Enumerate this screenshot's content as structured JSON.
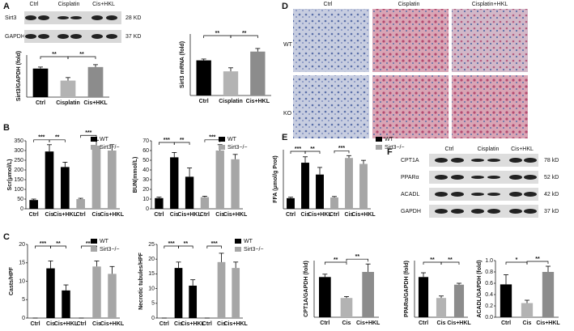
{
  "figure": {
    "panels": [
      "A",
      "B",
      "C",
      "D",
      "E",
      "F"
    ],
    "blot_a": {
      "lanes": [
        "Ctrl",
        "Cisplatin",
        "Cis+HKL"
      ],
      "rows": [
        {
          "protein": "Sirt3",
          "size": "28 KD"
        },
        {
          "protein": "GAPDH",
          "size": "37 KD"
        }
      ]
    },
    "histology": {
      "columns": [
        "Ctrl",
        "Cisplatin",
        "Cisplatin+HKL"
      ],
      "rows": [
        "WT",
        "KO"
      ]
    },
    "blot_f": {
      "lanes": [
        "Ctrl",
        "Cisplatin",
        "Cis+HKL"
      ],
      "rows": [
        {
          "protein": "CPT1A",
          "size": "78 kD"
        },
        {
          "protein": "PPARα",
          "size": "52 kD"
        },
        {
          "protein": "ACADL",
          "size": "42 kD"
        },
        {
          "protein": "GAPDH",
          "size": "37 kD"
        }
      ]
    }
  },
  "chart_data": [
    {
      "type": "bar",
      "ylabel": "Sirt3/GAPDH (fold)",
      "categories": [
        "Ctrl",
        "Cisplatin",
        "Cis+HKL"
      ],
      "values": [
        0.95,
        0.55,
        1.0
      ],
      "errors": [
        0.05,
        0.1,
        0.08
      ],
      "colors": [
        "#000000",
        "#b3b3b3",
        "#8c8c8c"
      ],
      "ylim": [
        0,
        1.4
      ],
      "annotations": [
        "**",
        "**"
      ]
    },
    {
      "type": "bar",
      "ylabel": "Sirt3 mRNA (fold)",
      "categories": [
        "Ctrl",
        "Cisplatin",
        "Cis+HKL"
      ],
      "values": [
        0.8,
        0.55,
        1.0
      ],
      "errors": [
        0.03,
        0.08,
        0.07
      ],
      "colors": [
        "#000000",
        "#b3b3b3",
        "#8c8c8c"
      ],
      "ylim": [
        0,
        1.4
      ],
      "annotations": [
        "**",
        "**"
      ]
    },
    {
      "type": "grouped",
      "ylabel": "Scr(μmol/L)",
      "categories": [
        "Ctrl",
        "Cis",
        "Cis+HKL",
        "Ctrl",
        "Cis",
        "Cis+HKL"
      ],
      "series": [
        {
          "name": "WT",
          "color": "#000000",
          "values": [
            45,
            295,
            215,
            null,
            null,
            null
          ],
          "errors": [
            5,
            35,
            25,
            null,
            null,
            null
          ]
        },
        {
          "name": "Sirt3−/−",
          "color": "#a6a6a6",
          "values": [
            null,
            null,
            null,
            50,
            325,
            300
          ],
          "errors": [
            null,
            null,
            null,
            4,
            28,
            30
          ]
        }
      ],
      "ylim": [
        0,
        350
      ],
      "yticks": [
        0,
        50,
        100,
        150,
        200,
        250,
        300,
        350
      ],
      "annotations": [
        "***",
        "**",
        "***"
      ]
    },
    {
      "type": "grouped",
      "ylabel": "BUN(mmol/L)",
      "categories": [
        "Ctrl",
        "Cis",
        "Cis+HKL",
        "Ctrl",
        "Cis",
        "Cis+HKL"
      ],
      "series": [
        {
          "name": "WT",
          "color": "#000000",
          "values": [
            11,
            53,
            33,
            null,
            null,
            null
          ],
          "errors": [
            1,
            5,
            9,
            null,
            null,
            null
          ]
        },
        {
          "name": "Sirt3−/−",
          "color": "#a6a6a6",
          "values": [
            null,
            null,
            null,
            12,
            60,
            51
          ],
          "errors": [
            null,
            null,
            null,
            1,
            6,
            5
          ]
        }
      ],
      "ylim": [
        0,
        70
      ],
      "yticks": [
        0,
        10,
        20,
        30,
        40,
        50,
        60,
        70
      ],
      "annotations": [
        "***",
        "**",
        "***"
      ]
    },
    {
      "type": "grouped",
      "ylabel": "Casts/HPF",
      "categories": [
        "Ctrl",
        "Cis",
        "Cis+HKL",
        "Ctrl",
        "Cis",
        "Cis+HKL"
      ],
      "series": [
        {
          "name": "WT",
          "color": "#000000",
          "values": [
            0,
            13.5,
            7.5,
            null,
            null,
            null
          ],
          "errors": [
            0,
            2,
            1.5,
            null,
            null,
            null
          ]
        },
        {
          "name": "Sirt3−/−",
          "color": "#a6a6a6",
          "values": [
            null,
            null,
            null,
            0,
            14,
            12
          ],
          "errors": [
            null,
            null,
            null,
            0,
            1.5,
            2
          ]
        }
      ],
      "ylim": [
        0,
        20
      ],
      "yticks": [
        0,
        5,
        10,
        15,
        20
      ],
      "annotations": [
        "***",
        "**",
        "***"
      ]
    },
    {
      "type": "grouped",
      "ylabel": "Necrotic tubules/HPF",
      "categories": [
        "Ctrl",
        "Cis",
        "Cis+HKL",
        "Ctrl",
        "Cis",
        "Cis+HKL"
      ],
      "series": [
        {
          "name": "WT",
          "color": "#000000",
          "values": [
            0,
            17,
            11,
            null,
            null,
            null
          ],
          "errors": [
            0,
            2,
            2,
            null,
            null,
            null
          ]
        },
        {
          "name": "Sirt3−/−",
          "color": "#a6a6a6",
          "values": [
            null,
            null,
            null,
            0,
            19,
            17
          ],
          "errors": [
            null,
            null,
            null,
            0,
            3,
            2
          ]
        }
      ],
      "ylim": [
        0,
        25
      ],
      "yticks": [
        0,
        5,
        10,
        15,
        20,
        25
      ],
      "annotations": [
        "***",
        "**",
        "***"
      ]
    },
    {
      "type": "grouped",
      "ylabel": "FFA (μmol/g Prot)",
      "categories": [
        "Ctrl",
        "Cis",
        "Cis+HKL",
        "Ctrl",
        "Cis",
        "Cis+HKL"
      ],
      "series": [
        {
          "name": "WT",
          "color": "#000000",
          "values": [
            45,
            195,
            145,
            null,
            null,
            null
          ],
          "errors": [
            4,
            25,
            30,
            null,
            null,
            null
          ]
        },
        {
          "name": "Sirt3−/−",
          "color": "#a6a6a6",
          "values": [
            null,
            null,
            null,
            48,
            215,
            190
          ],
          "errors": [
            null,
            null,
            null,
            4,
            10,
            15
          ]
        }
      ],
      "ylim": [
        0,
        250
      ],
      "annotations": [
        "***",
        "**",
        "***"
      ]
    },
    {
      "type": "bar",
      "ylabel": "CPT1A/GAPDH (fold)",
      "categories": [
        "Ctrl",
        "Cis",
        "Cis+HKL"
      ],
      "values": [
        1.42,
        0.68,
        1.6
      ],
      "errors": [
        0.1,
        0.05,
        0.28
      ],
      "colors": [
        "#000000",
        "#b3b3b3",
        "#8c8c8c"
      ],
      "ylim": [
        0,
        2.0
      ],
      "annotations": [
        "**",
        "**"
      ]
    },
    {
      "type": "bar",
      "ylabel": "PPARα/GAPDH (fold)",
      "categories": [
        "Ctrl",
        "Cis",
        "Cis+HKL"
      ],
      "values": [
        1.42,
        0.68,
        1.15
      ],
      "errors": [
        0.15,
        0.07,
        0.05
      ],
      "colors": [
        "#000000",
        "#b3b3b3",
        "#8c8c8c"
      ],
      "ylim": [
        0,
        2.0
      ],
      "annotations": [
        "**",
        "**"
      ]
    },
    {
      "type": "bar",
      "ylabel": "ACADL/GAPDH (fold)",
      "categories": [
        "Ctrl",
        "Cis",
        "Cis+HKL"
      ],
      "values": [
        0.58,
        0.25,
        0.8
      ],
      "errors": [
        0.17,
        0.05,
        0.1
      ],
      "colors": [
        "#000000",
        "#b3b3b3",
        "#8c8c8c"
      ],
      "ylim": [
        0,
        1.0
      ],
      "yticks": [
        {
          "value": 0,
          "label": "0.0"
        },
        0.2,
        0.4,
        0.6,
        0.8,
        {
          "value": 1,
          "label": "1.0"
        }
      ],
      "annotations": [
        "*",
        "**"
      ]
    }
  ]
}
